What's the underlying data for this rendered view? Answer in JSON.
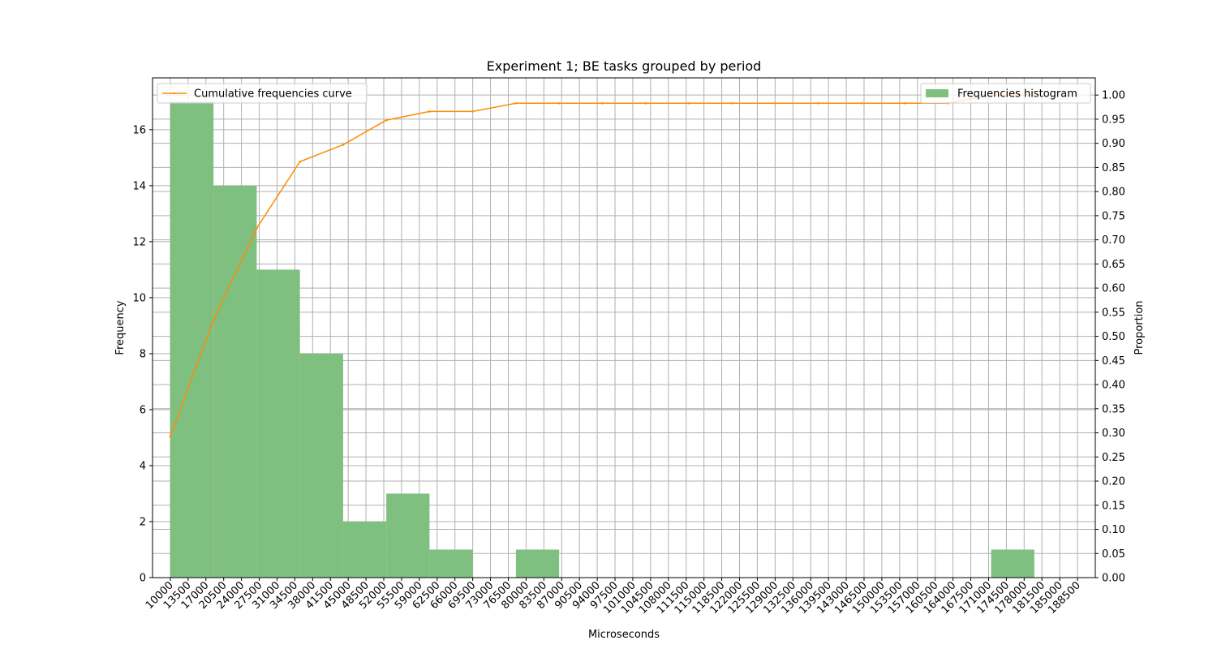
{
  "chart_data": {
    "type": "bar",
    "title": "Experiment 1; BE tasks grouped by period",
    "xlabel": "Microseconds",
    "ylabel": "Frequency",
    "y2label": "Proportion",
    "xlim": [
      6500,
      192000
    ],
    "ylim": [
      0,
      17.85
    ],
    "y2lim": [
      0,
      1.0356
    ],
    "grid": true,
    "x_ticks": [
      10000,
      13500,
      17000,
      20500,
      24000,
      27500,
      31000,
      34500,
      38000,
      41500,
      45000,
      48500,
      52000,
      55500,
      59000,
      62500,
      66000,
      69500,
      73000,
      76500,
      80000,
      83500,
      87000,
      90500,
      94000,
      97500,
      101000,
      104500,
      108000,
      111500,
      115000,
      118500,
      122000,
      125500,
      129000,
      132500,
      136000,
      139500,
      143000,
      146500,
      150000,
      153500,
      157000,
      160500,
      164000,
      167500,
      171000,
      174500,
      178000,
      181500,
      185000,
      188500
    ],
    "y_ticks": [
      0,
      2,
      4,
      6,
      8,
      10,
      12,
      14,
      16
    ],
    "y2_ticks": [
      "0.00",
      "0.05",
      "0.10",
      "0.15",
      "0.20",
      "0.25",
      "0.30",
      "0.35",
      "0.40",
      "0.45",
      "0.50",
      "0.55",
      "0.60",
      "0.65",
      "0.70",
      "0.75",
      "0.80",
      "0.85",
      "0.90",
      "0.95",
      "1.00"
    ],
    "histogram": {
      "name": "Frequencies histogram",
      "color": "#7fbf7f",
      "bins": [
        {
          "x0": 10000,
          "x1": 18500,
          "count": 17
        },
        {
          "x0": 18500,
          "x1": 27000,
          "count": 14
        },
        {
          "x0": 27000,
          "x1": 35500,
          "count": 11
        },
        {
          "x0": 35500,
          "x1": 44000,
          "count": 8
        },
        {
          "x0": 44000,
          "x1": 52500,
          "count": 2
        },
        {
          "x0": 52500,
          "x1": 61000,
          "count": 3
        },
        {
          "x0": 61000,
          "x1": 69500,
          "count": 1
        },
        {
          "x0": 69500,
          "x1": 78000,
          "count": 0
        },
        {
          "x0": 78000,
          "x1": 86500,
          "count": 1
        },
        {
          "x0": 86500,
          "x1": 95000,
          "count": 0
        },
        {
          "x0": 95000,
          "x1": 103500,
          "count": 0
        },
        {
          "x0": 103500,
          "x1": 112000,
          "count": 0
        },
        {
          "x0": 112000,
          "x1": 120500,
          "count": 0
        },
        {
          "x0": 120500,
          "x1": 129000,
          "count": 0
        },
        {
          "x0": 129000,
          "x1": 137500,
          "count": 0
        },
        {
          "x0": 137500,
          "x1": 146000,
          "count": 0
        },
        {
          "x0": 146000,
          "x1": 154500,
          "count": 0
        },
        {
          "x0": 154500,
          "x1": 163000,
          "count": 0
        },
        {
          "x0": 163000,
          "x1": 171500,
          "count": 0
        },
        {
          "x0": 171500,
          "x1": 180000,
          "count": 1
        }
      ]
    },
    "cumulative": {
      "name": "Cumulative frequencies curve",
      "color": "#ff8c00",
      "x": [
        10000,
        18500,
        27000,
        35500,
        44000,
        52500,
        61000,
        69500,
        78000,
        86500,
        95000,
        103500,
        112000,
        120500,
        129000,
        137500,
        146000,
        154500,
        163000,
        171500,
        180000
      ],
      "y": [
        0.293,
        0.534,
        0.724,
        0.862,
        0.897,
        0.948,
        0.966,
        0.966,
        0.983,
        0.983,
        0.983,
        0.983,
        0.983,
        0.983,
        0.983,
        0.983,
        0.983,
        0.983,
        0.983,
        1.0,
        1.0
      ]
    },
    "legends": [
      {
        "label": "Cumulative frequencies curve",
        "placement": "upper left"
      },
      {
        "label": "Frequencies histogram",
        "placement": "upper right"
      }
    ]
  }
}
